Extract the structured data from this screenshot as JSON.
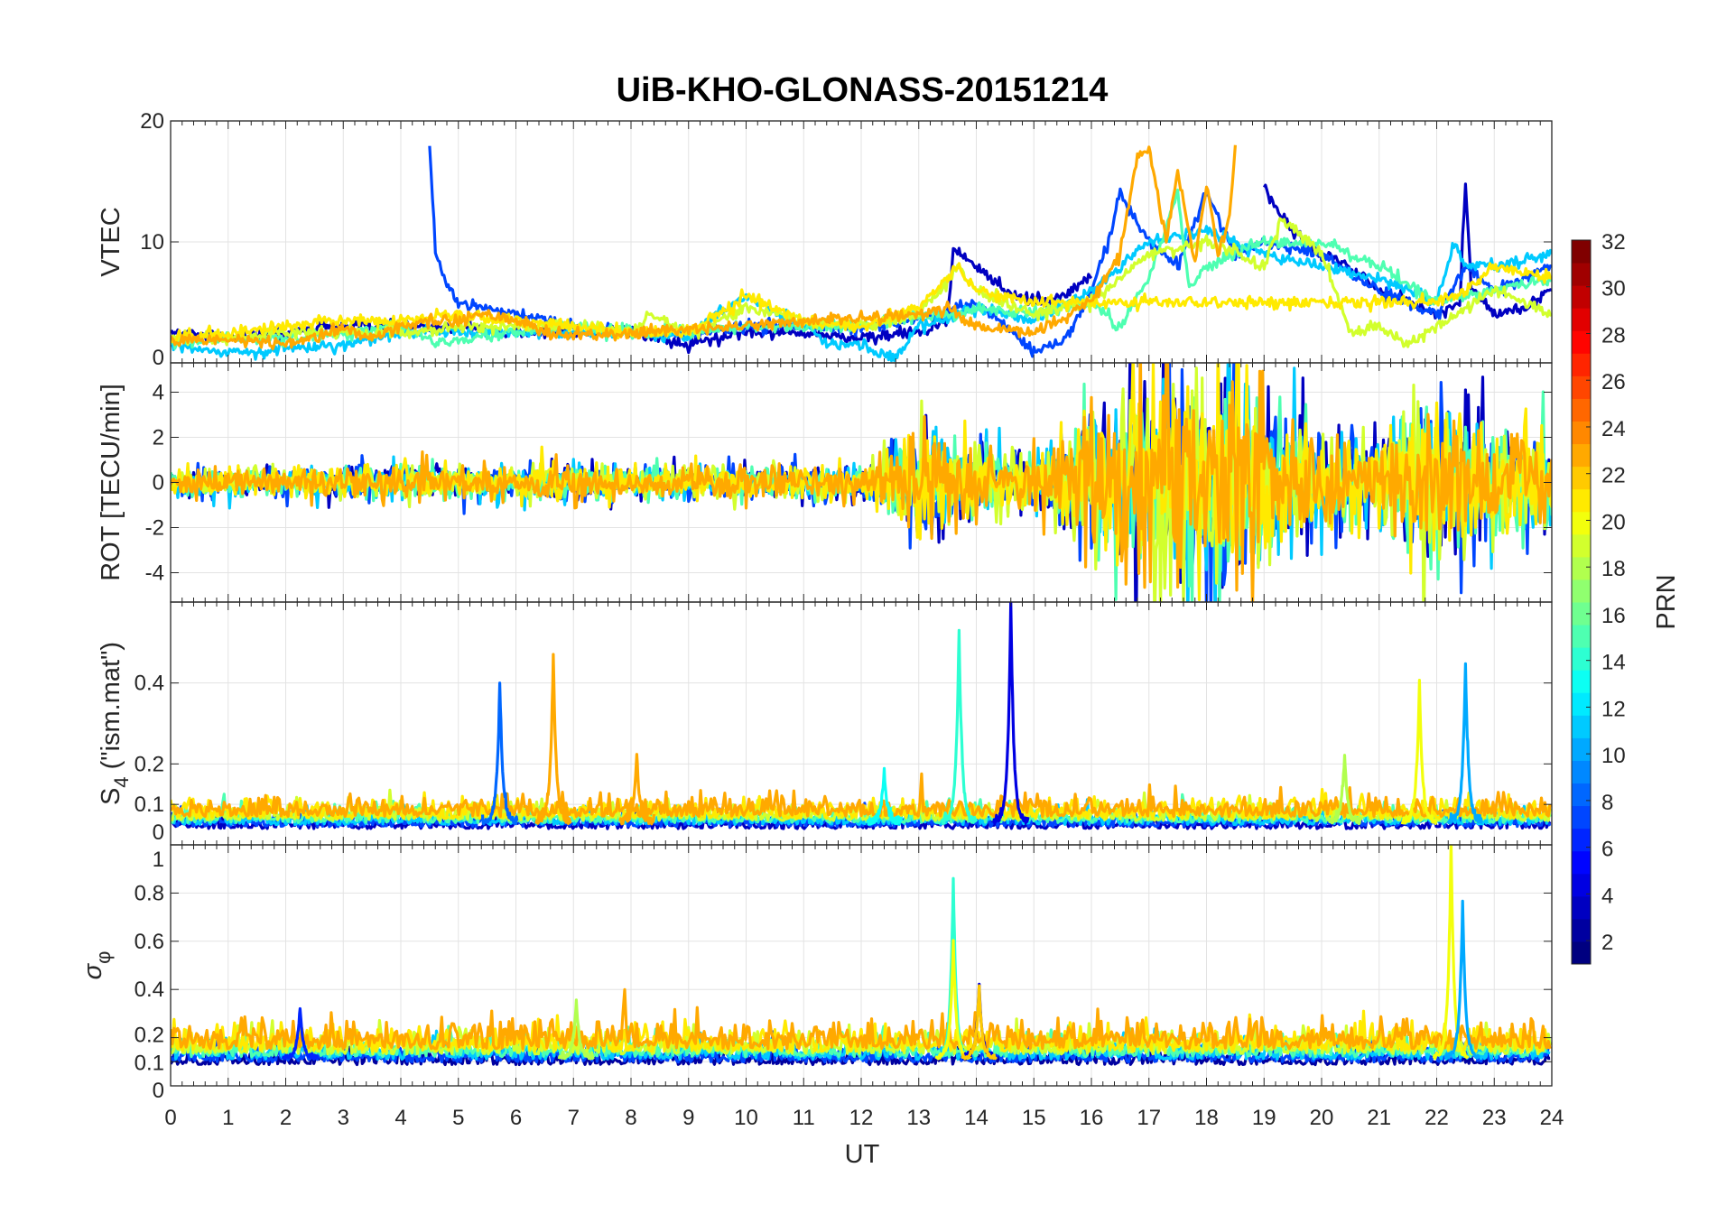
{
  "chart_data": {
    "type": "line",
    "title": "UiB-KHO-GLONASS-20151214",
    "xlabel": "UT",
    "xlim": [
      0,
      24
    ],
    "xticks": [
      "0",
      "1",
      "2",
      "3",
      "4",
      "5",
      "6",
      "7",
      "8",
      "9",
      "10",
      "11",
      "12",
      "13",
      "14",
      "15",
      "16",
      "17",
      "18",
      "19",
      "20",
      "21",
      "22",
      "23",
      "24"
    ],
    "grid": true,
    "colorbar": {
      "label": "PRN",
      "range": [
        1,
        32
      ],
      "ticks": [
        "2",
        "4",
        "6",
        "8",
        "10",
        "12",
        "14",
        "16",
        "18",
        "20",
        "22",
        "24",
        "26",
        "28",
        "30",
        "32"
      ],
      "colormap": "jet",
      "placement": "right"
    },
    "panels": [
      {
        "ylabel": "VTEC",
        "ylim": [
          0,
          20
        ],
        "yticks": [
          {
            "v": 0,
            "t": "0"
          },
          {
            "v": 10,
            "t": "10"
          },
          {
            "v": 20,
            "t": "20"
          }
        ],
        "series": [
          {
            "prn": 3,
            "x": [
              0,
              1,
              2,
              3,
              4,
              5,
              6,
              7,
              8,
              9,
              10,
              11,
              12,
              13,
              13.5,
              13.6,
              14,
              14.5,
              15,
              15.5,
              16
            ],
            "y": [
              2.5,
              2,
              2.5,
              3,
              3,
              3,
              2.5,
              2.5,
              2.5,
              1.5,
              2.5,
              2.5,
              2,
              2.5,
              3.5,
              9.5,
              8,
              6,
              5,
              5.5,
              7
            ]
          },
          {
            "prn": 3,
            "x": [
              19,
              19.3,
              19.5,
              20,
              20.5,
              21,
              21.5,
              22,
              22.4,
              22.5,
              22.6,
              23,
              23.5,
              24
            ],
            "y": [
              14.5,
              12,
              11,
              9,
              8,
              6,
              5,
              4,
              5,
              15,
              6,
              4,
              4.5,
              6
            ]
          },
          {
            "prn": 7,
            "x": [
              4.5,
              4.6,
              4.8,
              5,
              5.5,
              6,
              7,
              8,
              9,
              10,
              11,
              12,
              13,
              14,
              14.5,
              15,
              15.5,
              16,
              16.3,
              16.5,
              17,
              17.5,
              18,
              18.5,
              19,
              20,
              21,
              21.5,
              22,
              22.5,
              23,
              24
            ],
            "y": [
              18,
              9,
              6.5,
              5,
              4.5,
              4,
              3,
              2.5,
              2.5,
              3,
              3,
              3,
              3.5,
              5,
              3,
              1,
              1.5,
              6,
              10,
              14,
              10,
              8,
              14,
              9,
              10,
              9,
              6,
              5,
              4,
              8,
              6,
              8
            ]
          },
          {
            "prn": 11,
            "x": [
              0,
              1,
              2,
              3,
              4,
              5,
              6,
              7,
              8,
              9,
              9.5,
              10,
              11,
              11.5,
              12,
              12.6,
              13,
              14,
              15,
              16,
              17,
              18,
              19,
              20,
              21,
              22,
              22.3,
              22.5,
              23,
              24
            ],
            "y": [
              1.5,
              0.8,
              1.2,
              1.5,
              2.5,
              2.5,
              2.5,
              2.5,
              2.5,
              2,
              4,
              5.5,
              3,
              1.5,
              1.5,
              0.3,
              3,
              4.5,
              3.5,
              6,
              10,
              11,
              9,
              8,
              7,
              5,
              10,
              8,
              8,
              9
            ]
          },
          {
            "prn": 15,
            "x": [
              0,
              2,
              4,
              4.7,
              5,
              6,
              7,
              8,
              9,
              10,
              11,
              12,
              13,
              13.6,
              14,
              15,
              16,
              16.5,
              17,
              17.5,
              17.7,
              18,
              19,
              20,
              21,
              22,
              23,
              24
            ],
            "y": [
              2,
              2,
              3,
              1.7,
              2,
              2.5,
              3,
              2.5,
              2.5,
              3,
              3,
              3,
              4,
              4,
              4.5,
              4,
              5,
              3,
              7,
              14,
              6,
              8,
              10,
              10,
              8,
              5,
              6,
              7
            ]
          },
          {
            "prn": 19,
            "x": [
              0,
              1,
              2,
              3,
              4,
              5,
              6,
              7,
              8,
              8.3,
              9,
              10,
              11,
              12,
              13,
              13.7,
              14,
              15,
              16,
              17,
              18,
              19,
              19.3,
              20,
              20.4,
              20.5,
              21,
              21.5,
              22,
              23,
              24
            ],
            "y": [
              2,
              2,
              2.5,
              2.5,
              2.5,
              3,
              3,
              3,
              2.5,
              4,
              2.5,
              4.5,
              3.5,
              3,
              4,
              8,
              6,
              4,
              5,
              9,
              10,
              8,
              12,
              9,
              4,
              2.5,
              3,
              1.5,
              3,
              6,
              4
            ]
          },
          {
            "prn": 21,
            "x": [
              0,
              1,
              2,
              3,
              4,
              5,
              6,
              7,
              8,
              9,
              10,
              11,
              12,
              13,
              13.7,
              14,
              15,
              16,
              22,
              22.5,
              23,
              24
            ],
            "y": [
              2,
              2.5,
              3,
              3.5,
              3.5,
              4,
              3.5,
              3,
              2.5,
              2.5,
              5.5,
              3.5,
              3,
              4.5,
              8,
              6,
              5,
              5,
              5,
              6,
              8,
              7
            ]
          },
          {
            "prn": 23,
            "x": [
              0,
              1,
              2,
              3,
              3.5,
              4,
              4.5,
              5,
              5.5,
              6,
              6.5,
              7,
              8,
              13,
              13.5,
              14,
              15,
              16,
              16.5,
              16.8,
              17,
              17.3,
              17.5,
              17.8,
              18,
              18.2,
              18.4,
              18.5
            ],
            "y": [
              1.8,
              2,
              1.5,
              2.8,
              2,
              3,
              3.5,
              3.5,
              4,
              3.5,
              2.5,
              2.3,
              2.5,
              4,
              4.5,
              3,
              2.5,
              5,
              9,
              17,
              18,
              10,
              16,
              8,
              15,
              9,
              12,
              18
            ]
          }
        ]
      },
      {
        "ylabel": "ROT [TECU/min]",
        "ylim": [
          -5.3,
          5.3
        ],
        "yticks": [
          {
            "v": -4,
            "t": "-4"
          },
          {
            "v": -2,
            "t": "-2"
          },
          {
            "v": 0,
            "t": "0"
          },
          {
            "v": 2,
            "t": "2"
          },
          {
            "v": 4,
            "t": "4"
          }
        ],
        "envelope_by_hour": [
          0.3,
          0.3,
          0.3,
          0.35,
          0.35,
          0.35,
          0.35,
          0.4,
          0.35,
          0.35,
          0.35,
          0.35,
          0.35,
          1.2,
          0.8,
          0.6,
          1.5,
          2.2,
          2.8,
          2,
          1,
          0.9,
          1.8,
          1.2,
          1
        ],
        "prns": [
          3,
          7,
          11,
          15,
          19,
          21,
          23
        ]
      },
      {
        "ylabel_main": "S",
        "ylabel_sub": "4",
        "ylabel_rest": " (\"ism.mat\")",
        "ylim": [
          0,
          0.6
        ],
        "yticks": [
          {
            "v": 0,
            "t": "0"
          },
          {
            "v": 0.1,
            "t": "0.1"
          },
          {
            "v": 0.2,
            "t": "0.2"
          },
          {
            "v": 0.4,
            "t": "0.4"
          }
        ],
        "baseline": 0.05,
        "spikes": [
          {
            "prn": 8,
            "t": 5.72,
            "peak": 0.39
          },
          {
            "prn": 23,
            "t": 6.65,
            "peak": 0.47
          },
          {
            "prn": 23,
            "t": 8.1,
            "peak": 0.22
          },
          {
            "prn": 14,
            "t": 13.7,
            "peak": 0.53
          },
          {
            "prn": 4,
            "t": 14.6,
            "peak": 0.6
          },
          {
            "prn": 18,
            "t": 20.4,
            "peak": 0.22
          },
          {
            "prn": 20,
            "t": 21.7,
            "peak": 0.4
          },
          {
            "prn": 10,
            "t": 22.5,
            "peak": 0.44
          },
          {
            "prn": 13,
            "t": 12.4,
            "peak": 0.18
          }
        ],
        "prns": [
          3,
          7,
          11,
          15,
          19,
          21,
          23
        ]
      },
      {
        "ylabel_main": "σ",
        "ylabel_sub": "φ",
        "ylim": [
          0,
          1
        ],
        "yticks": [
          {
            "v": 0,
            "t": "0"
          },
          {
            "v": 0.1,
            "t": "0.1"
          },
          {
            "v": 0.2,
            "t": "0.2"
          },
          {
            "v": 0.4,
            "t": "0.4"
          },
          {
            "v": 0.6,
            "t": "0.6"
          },
          {
            "v": 0.8,
            "t": "0.8"
          },
          {
            "v": 1,
            "t": "1"
          }
        ],
        "baseline": 0.11,
        "spikes": [
          {
            "prn": 14,
            "t": 13.6,
            "peak": 0.86
          },
          {
            "prn": 20,
            "t": 13.6,
            "peak": 0.6
          },
          {
            "prn": 4,
            "t": 14.05,
            "peak": 0.42
          },
          {
            "prn": 22,
            "t": 14.05,
            "peak": 0.4
          },
          {
            "prn": 20,
            "t": 22.25,
            "peak": 1.0
          },
          {
            "prn": 10,
            "t": 22.45,
            "peak": 0.76
          },
          {
            "prn": 18,
            "t": 7.05,
            "peak": 0.35
          },
          {
            "prn": 6,
            "t": 2.25,
            "peak": 0.32
          }
        ],
        "prns": [
          2,
          7,
          11,
          15,
          19,
          21,
          23
        ]
      }
    ]
  }
}
